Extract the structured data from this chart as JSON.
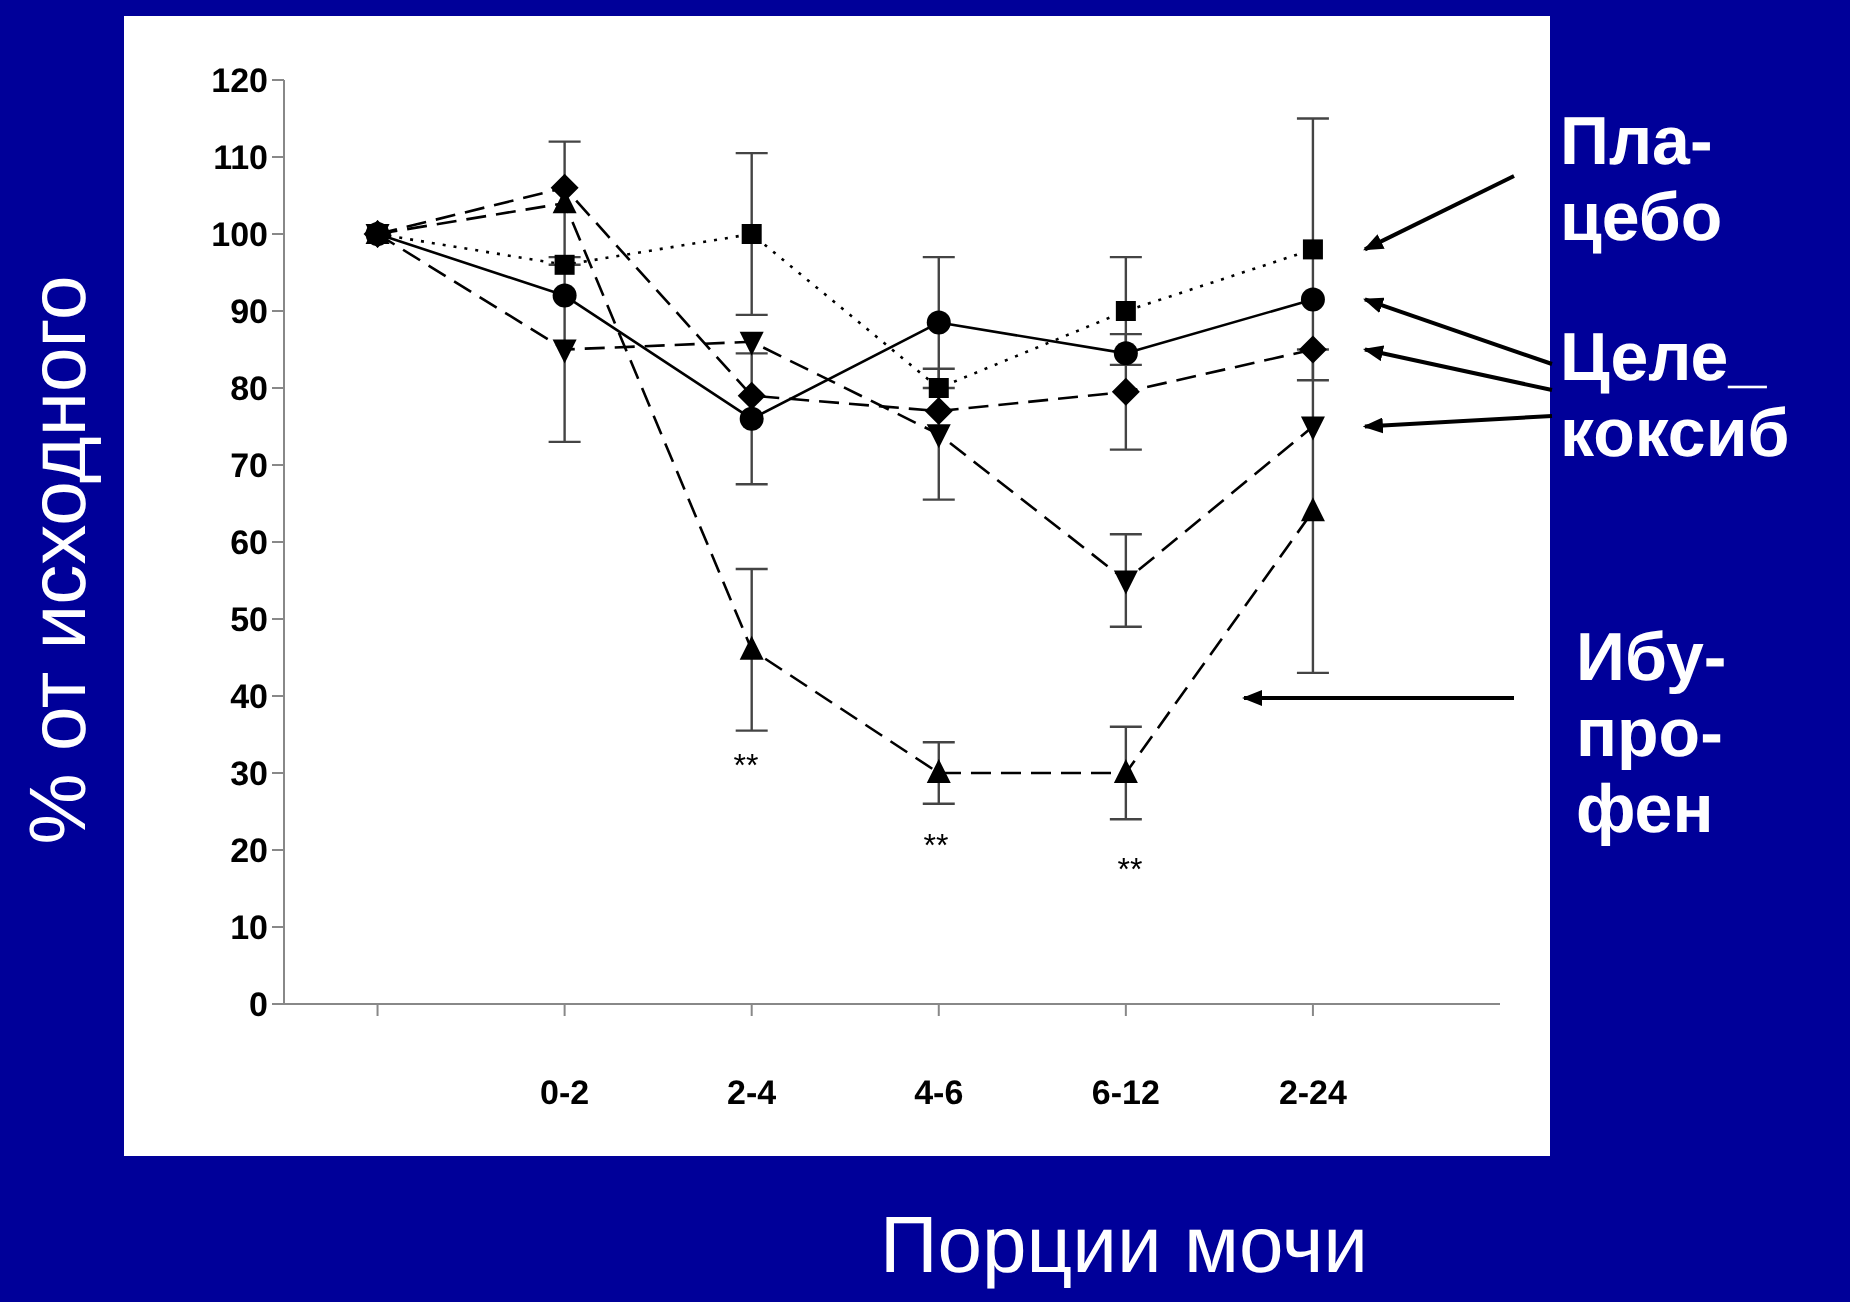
{
  "chart_data": {
    "type": "line",
    "xlabel": "Порции мочи",
    "ylabel": "% от исходного",
    "categories": [
      null,
      "0-2",
      "2-4",
      "4-6",
      "6-12",
      "2-24"
    ],
    "ylim": [
      0,
      120
    ],
    "yticks": [
      0,
      10,
      20,
      30,
      40,
      50,
      60,
      70,
      80,
      90,
      100,
      110,
      120
    ],
    "grid": false,
    "legend": false,
    "series": [
      {
        "color": "#000000",
        "marker": "square",
        "line_style": "dotted",
        "values": [
          100,
          96,
          100,
          80,
          90,
          98
        ],
        "errors": [
          null,
          null,
          10.5,
          null,
          7,
          17
        ]
      },
      {
        "color": "#000000",
        "marker": "circle",
        "line_style": "solid",
        "values": [
          100,
          92,
          76,
          88.5,
          84.5,
          91.5
        ],
        "errors": [
          null,
          null,
          8.5,
          8.5,
          null,
          null
        ]
      },
      {
        "color": "#000000",
        "marker": "diamond",
        "line_style": "dashed",
        "values": [
          100,
          106,
          79,
          77,
          79.5,
          85
        ],
        "errors": [
          null,
          null,
          null,
          null,
          7.5,
          null
        ]
      },
      {
        "color": "#000000",
        "marker": "triangle-down",
        "line_style": "dashed",
        "values": [
          100,
          85,
          86,
          74,
          55,
          75
        ],
        "errors": [
          null,
          12,
          null,
          8.5,
          6,
          null
        ]
      },
      {
        "color": "#000000",
        "marker": "triangle",
        "line_style": "dashed",
        "values": [
          100,
          104,
          46,
          30,
          30,
          64
        ],
        "errors": [
          null,
          8,
          10.5,
          4,
          6,
          21
        ]
      }
    ],
    "annotations": [
      "Пла-\nцебо",
      "Целе_\nкоксиб",
      "Ибу-\nпро-\nфен",
      "**",
      "**",
      "**"
    ]
  }
}
